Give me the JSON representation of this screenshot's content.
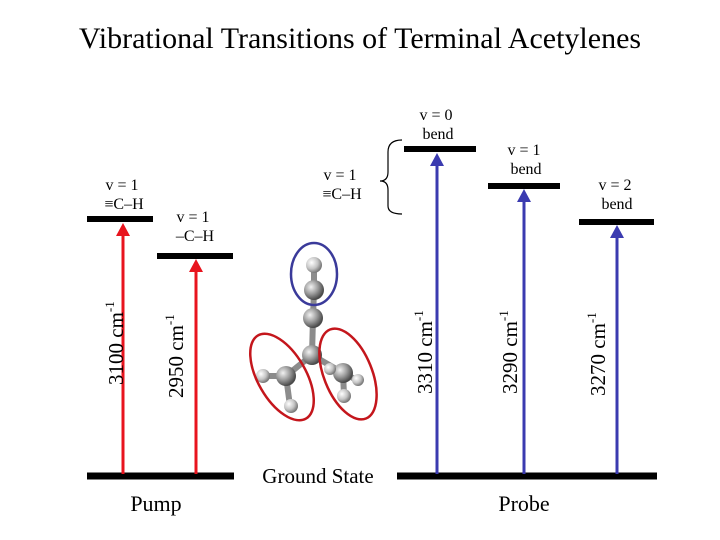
{
  "title": "Vibrational Transitions of Terminal Acetylenes",
  "ground_label": "Ground State",
  "pump_label": "Pump",
  "probe_label": "Probe",
  "colors": {
    "pump": "#e8141e",
    "probe": "#3b3bb0",
    "level": "#000000",
    "ellipse_red": "#c4161c",
    "ellipse_blue": "#3a3a9a"
  },
  "levels": {
    "ch_acetylenic": {
      "line1": "v = 1",
      "line2": "≡C–H"
    },
    "ch_alkyl": {
      "line1": "v = 1",
      "line2": "–C–H"
    },
    "bracket": {
      "line1": "v = 1",
      "line2": "≡C–H"
    },
    "bend0": {
      "line1": "v = 0",
      "line2": "bend"
    },
    "bend1": {
      "line1": "v = 1",
      "line2": "bend"
    },
    "bend2": {
      "line1": "v = 2",
      "line2": "bend"
    }
  },
  "transitions": [
    {
      "value": "3100",
      "unit": "cm",
      "exp": "-1"
    },
    {
      "value": "2950",
      "unit": "cm",
      "exp": "-1"
    },
    {
      "value": "3310",
      "unit": "cm",
      "exp": "-1"
    },
    {
      "value": "3290",
      "unit": "cm",
      "exp": "-1"
    },
    {
      "value": "3270",
      "unit": "cm",
      "exp": "-1"
    }
  ]
}
